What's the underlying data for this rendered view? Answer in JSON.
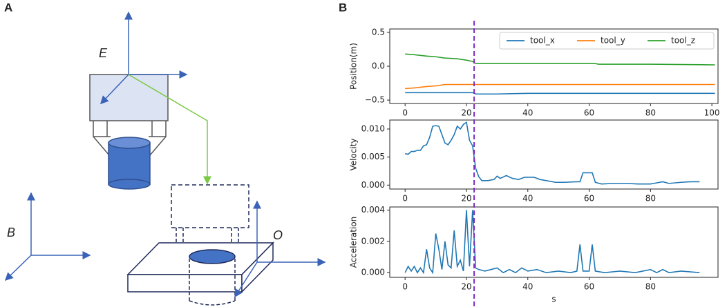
{
  "panel_labels": [
    "A",
    "B"
  ],
  "diagram": {
    "labels": [
      "E",
      "B",
      "O"
    ]
  },
  "divider": {
    "x": 22.5,
    "color": "#7b2cbf"
  },
  "chart_data": [
    {
      "type": "line",
      "ylabel": "Position(m)",
      "x": [
        0,
        3,
        7,
        10,
        13,
        17,
        20,
        22,
        23,
        30,
        40,
        50,
        62,
        63,
        80,
        101
      ],
      "series": [
        {
          "name": "tool_x",
          "color": "#1f77b4",
          "values": [
            -0.39,
            -0.39,
            -0.39,
            -0.39,
            -0.39,
            -0.39,
            -0.39,
            -0.39,
            -0.41,
            -0.41,
            -0.4,
            -0.4,
            -0.4,
            -0.4,
            -0.4,
            -0.4
          ]
        },
        {
          "name": "tool_y",
          "color": "#ff7f0e",
          "values": [
            -0.33,
            -0.32,
            -0.3,
            -0.29,
            -0.27,
            -0.27,
            -0.27,
            -0.27,
            -0.27,
            -0.27,
            -0.27,
            -0.27,
            -0.27,
            -0.27,
            -0.27,
            -0.27
          ]
        },
        {
          "name": "tool_z",
          "color": "#2ca02c",
          "values": [
            0.18,
            0.17,
            0.15,
            0.14,
            0.12,
            0.11,
            0.09,
            0.07,
            0.04,
            0.04,
            0.04,
            0.04,
            0.04,
            0.03,
            0.03,
            0.02
          ]
        }
      ],
      "xlim": [
        -5,
        102
      ],
      "xticks": [
        0,
        20,
        40,
        60,
        80,
        100
      ],
      "ylim": [
        -0.55,
        0.55
      ],
      "yticks": [
        {
          "value": -0.5,
          "label": "−0.5"
        },
        {
          "value": 0,
          "label": "0.0"
        },
        0.5
      ],
      "legend": "upper right"
    },
    {
      "type": "line",
      "ylabel": "Velocity",
      "x": [
        0,
        1,
        2,
        3,
        4,
        5,
        6,
        7,
        8,
        9,
        10,
        11,
        12,
        13,
        14,
        15,
        16,
        17,
        18,
        19,
        20,
        21,
        22,
        23,
        24,
        25,
        27,
        29,
        30,
        31,
        33,
        35,
        37,
        39,
        42,
        44,
        46,
        49,
        52,
        56,
        57,
        58,
        60,
        61,
        62,
        64,
        68,
        72,
        76,
        80,
        83,
        84,
        86,
        90,
        93,
        96
      ],
      "series": [
        {
          "name": "velocity",
          "color": "#1f77b4",
          "values": [
            0.0056,
            0.0055,
            0.006,
            0.006,
            0.0062,
            0.0062,
            0.007,
            0.0072,
            0.0085,
            0.0105,
            0.0106,
            0.0105,
            0.009,
            0.0075,
            0.0072,
            0.008,
            0.009,
            0.0105,
            0.01,
            0.0108,
            0.0112,
            0.008,
            0.007,
            0.003,
            0.0015,
            0.0008,
            0.0008,
            0.001,
            0.0016,
            0.0012,
            0.0017,
            0.0012,
            0.001,
            0.0014,
            0.0014,
            0.001,
            0.0008,
            0.0005,
            0.0005,
            0.0006,
            0.0006,
            0.0022,
            0.0022,
            0.0022,
            0.0005,
            0.0002,
            0.0003,
            0.0003,
            0.0002,
            0.0002,
            0.0005,
            0.0006,
            0.0003,
            0.0005,
            0.0006,
            0.0006
          ]
        }
      ],
      "xlim": [
        -5,
        102
      ],
      "xticks": [
        0,
        20,
        40,
        60,
        80
      ],
      "ylim": [
        -0.0007,
        0.0116
      ],
      "yticks": [
        {
          "value": 0,
          "label": "0.000"
        },
        {
          "value": 0.005,
          "label": "0.005"
        },
        {
          "value": 0.01,
          "label": "0.010"
        }
      ]
    },
    {
      "type": "line",
      "ylabel": "Acceleration",
      "xlabel": "s",
      "x": [
        0,
        1,
        2,
        3,
        4,
        5,
        6,
        7,
        8,
        9,
        10,
        11,
        12,
        13,
        14,
        15,
        16,
        17,
        18,
        19,
        20,
        21,
        22,
        23,
        24,
        26,
        28,
        30,
        32,
        34,
        36,
        38,
        40,
        43,
        46,
        50,
        54,
        56,
        57,
        58,
        60,
        61,
        62,
        65,
        70,
        75,
        80,
        82,
        84,
        86,
        90,
        96
      ],
      "series": [
        {
          "name": "acceleration",
          "color": "#1f77b4",
          "values": [
            0.0,
            0.0004,
            0.0001,
            0.0004,
            0.0,
            0.0003,
            0.0,
            0.0015,
            0.0003,
            0.0,
            0.0025,
            0.0015,
            0.0002,
            0.002,
            0.0005,
            0.0003,
            0.0027,
            0.0004,
            0.0008,
            0.0001,
            0.004,
            0.0004,
            0.004,
            0.0003,
            0.0002,
            0.0001,
            0.0002,
            0.0003,
            0.0,
            0.0002,
            0.0,
            0.0003,
            0.0001,
            0.0002,
            0.0,
            0.0001,
            0.0,
            0.0001,
            0.0018,
            0.0001,
            0.0001,
            0.0018,
            0.0001,
            0.0,
            0.0001,
            0.0,
            0.0002,
            0.0,
            0.0002,
            0.0,
            0.0001,
            0.0
          ]
        }
      ],
      "xlim": [
        -5,
        102
      ],
      "xticks": [
        0,
        20,
        40,
        60,
        80
      ],
      "ylim": [
        -0.0003,
        0.0042
      ],
      "yticks": [
        {
          "value": 0,
          "label": "0.000"
        },
        {
          "value": 0.002,
          "label": "0.002"
        },
        {
          "value": 0.004,
          "label": "0.004"
        }
      ]
    }
  ]
}
